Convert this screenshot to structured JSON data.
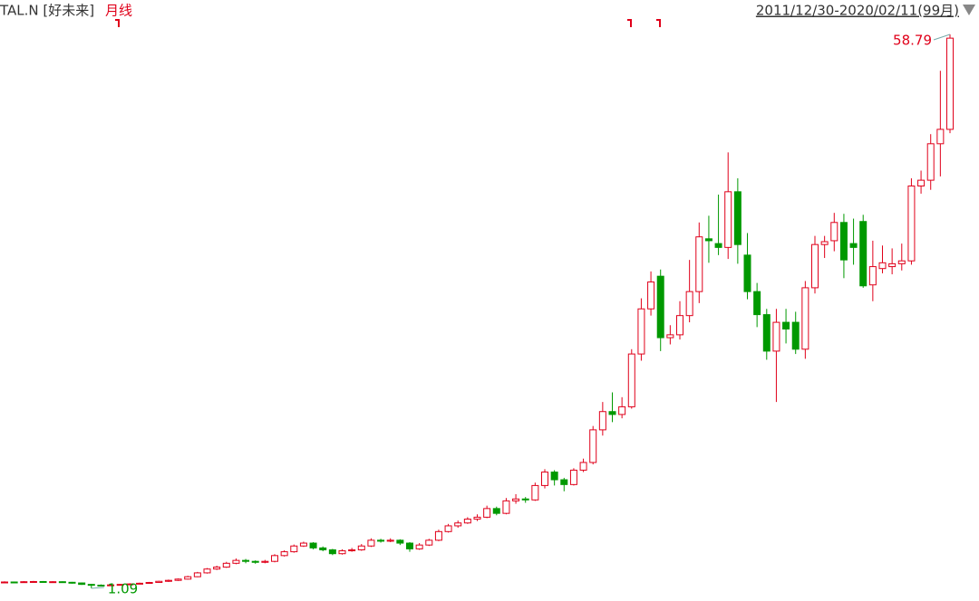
{
  "chart_data": {
    "type": "candlestick",
    "title": "TAL.N [好未来]",
    "subtitle": "月线",
    "date_range": "2011/12/30-2020/02/11(99月)",
    "max_label": "58.79",
    "min_label": "1.09",
    "up_color": "#e0001a",
    "down_color": "#009900",
    "open": [
      1.7,
      1.75,
      1.72,
      1.78,
      1.8,
      1.76,
      1.78,
      1.72,
      1.65,
      1.5,
      1.42,
      1.4,
      1.45,
      1.5,
      1.55,
      1.62,
      1.7,
      1.82,
      1.92,
      2.05,
      2.3,
      2.7,
      3.1,
      3.3,
      3.7,
      4.0,
      3.9,
      3.8,
      3.9,
      4.5,
      4.9,
      5.5,
      5.8,
      5.3,
      5.1,
      4.7,
      5.0,
      5.1,
      5.5,
      6.1,
      6.0,
      6.1,
      5.8,
      5.2,
      5.6,
      6.1,
      7.0,
      7.6,
      7.9,
      8.3,
      8.5,
      9.4,
      8.9,
      10.2,
      10.4,
      10.3,
      11.8,
      13.2,
      12.4,
      11.9,
      13.4,
      14.2,
      17.6,
      19.5,
      19.2,
      20.0,
      25.5,
      30.2,
      33.6,
      27.2,
      27.5,
      29.5,
      32.0,
      37.5,
      37.0,
      36.6,
      42.4,
      35.8,
      32.0,
      29.6,
      25.8,
      28.8,
      28.8,
      26.0,
      32.4,
      36.9,
      37.3,
      39.2,
      37.0,
      39.3,
      32.7,
      34.4,
      34.6,
      34.9,
      35.2,
      43.0,
      43.6,
      47.4,
      48.9
    ],
    "high": [
      1.82,
      1.8,
      1.84,
      1.86,
      1.85,
      1.83,
      1.82,
      1.76,
      1.7,
      1.55,
      1.5,
      1.52,
      1.56,
      1.62,
      1.68,
      1.76,
      1.88,
      2.0,
      2.12,
      2.4,
      2.8,
      3.2,
      3.45,
      3.85,
      4.2,
      4.15,
      4.0,
      4.05,
      4.65,
      5.05,
      5.65,
      5.95,
      5.9,
      5.45,
      5.2,
      5.15,
      5.3,
      5.7,
      6.3,
      6.25,
      6.3,
      6.2,
      5.9,
      5.8,
      6.25,
      7.2,
      7.8,
      8.15,
      8.5,
      8.8,
      9.7,
      9.6,
      10.5,
      10.9,
      10.6,
      12.1,
      13.5,
      13.4,
      12.6,
      13.6,
      14.6,
      18.0,
      20.5,
      21.5,
      21.0,
      26.0,
      31.3,
      34.1,
      34.3,
      28.5,
      31.0,
      35.3,
      39.2,
      39.9,
      42.1,
      46.5,
      43.8,
      38.1,
      32.9,
      30.2,
      30.2,
      30.2,
      29.9,
      33.1,
      37.8,
      37.8,
      40.2,
      40.1,
      39.6,
      40.0,
      37.3,
      36.8,
      36.5,
      37.0,
      43.8,
      44.6,
      48.4,
      55.0,
      58.79
    ],
    "low": [
      1.65,
      1.66,
      1.68,
      1.73,
      1.7,
      1.7,
      1.66,
      1.58,
      1.45,
      1.09,
      1.3,
      1.36,
      1.4,
      1.46,
      1.5,
      1.58,
      1.66,
      1.76,
      1.86,
      2.0,
      2.25,
      2.62,
      3.0,
      3.22,
      3.6,
      3.7,
      3.65,
      3.7,
      3.8,
      4.4,
      4.8,
      5.4,
      5.15,
      4.95,
      4.55,
      4.6,
      4.9,
      5.0,
      5.4,
      5.85,
      5.9,
      5.6,
      4.9,
      5.1,
      5.5,
      6.0,
      6.9,
      7.4,
      7.8,
      8.1,
      8.4,
      8.7,
      8.8,
      9.9,
      10.0,
      10.2,
      11.5,
      11.8,
      11.2,
      11.8,
      13.2,
      14.0,
      17.0,
      18.4,
      18.8,
      19.8,
      24.8,
      29.5,
      25.8,
      26.5,
      27.0,
      28.8,
      30.8,
      35.0,
      35.8,
      35.4,
      34.9,
      31.2,
      28.3,
      24.9,
      20.5,
      26.6,
      25.5,
      25.0,
      31.8,
      35.5,
      36.2,
      33.4,
      34.8,
      32.4,
      31.0,
      33.9,
      33.8,
      34.2,
      34.8,
      42.2,
      42.6,
      44.0,
      48.5
    ],
    "close": [
      1.75,
      1.72,
      1.78,
      1.8,
      1.76,
      1.78,
      1.72,
      1.65,
      1.5,
      1.42,
      1.4,
      1.45,
      1.5,
      1.55,
      1.62,
      1.7,
      1.82,
      1.92,
      2.05,
      2.3,
      2.7,
      3.1,
      3.3,
      3.7,
      4.0,
      3.9,
      3.8,
      3.9,
      4.5,
      4.9,
      5.5,
      5.8,
      5.3,
      5.1,
      4.7,
      5.0,
      5.1,
      5.5,
      6.1,
      6.0,
      6.1,
      5.8,
      5.2,
      5.6,
      6.1,
      7.0,
      7.6,
      7.9,
      8.3,
      8.5,
      9.4,
      8.9,
      10.2,
      10.4,
      10.3,
      11.8,
      13.2,
      12.4,
      11.9,
      13.4,
      14.2,
      17.6,
      19.5,
      19.2,
      20.0,
      25.5,
      30.2,
      33.0,
      27.2,
      27.5,
      29.5,
      32.0,
      37.7,
      37.3,
      36.6,
      42.4,
      36.9,
      32.0,
      29.6,
      25.8,
      28.8,
      28.1,
      26.0,
      32.4,
      36.9,
      37.2,
      39.2,
      35.3,
      36.6,
      32.6,
      34.6,
      35.0,
      34.9,
      35.2,
      43.0,
      43.6,
      47.4,
      48.9,
      58.4
    ]
  }
}
